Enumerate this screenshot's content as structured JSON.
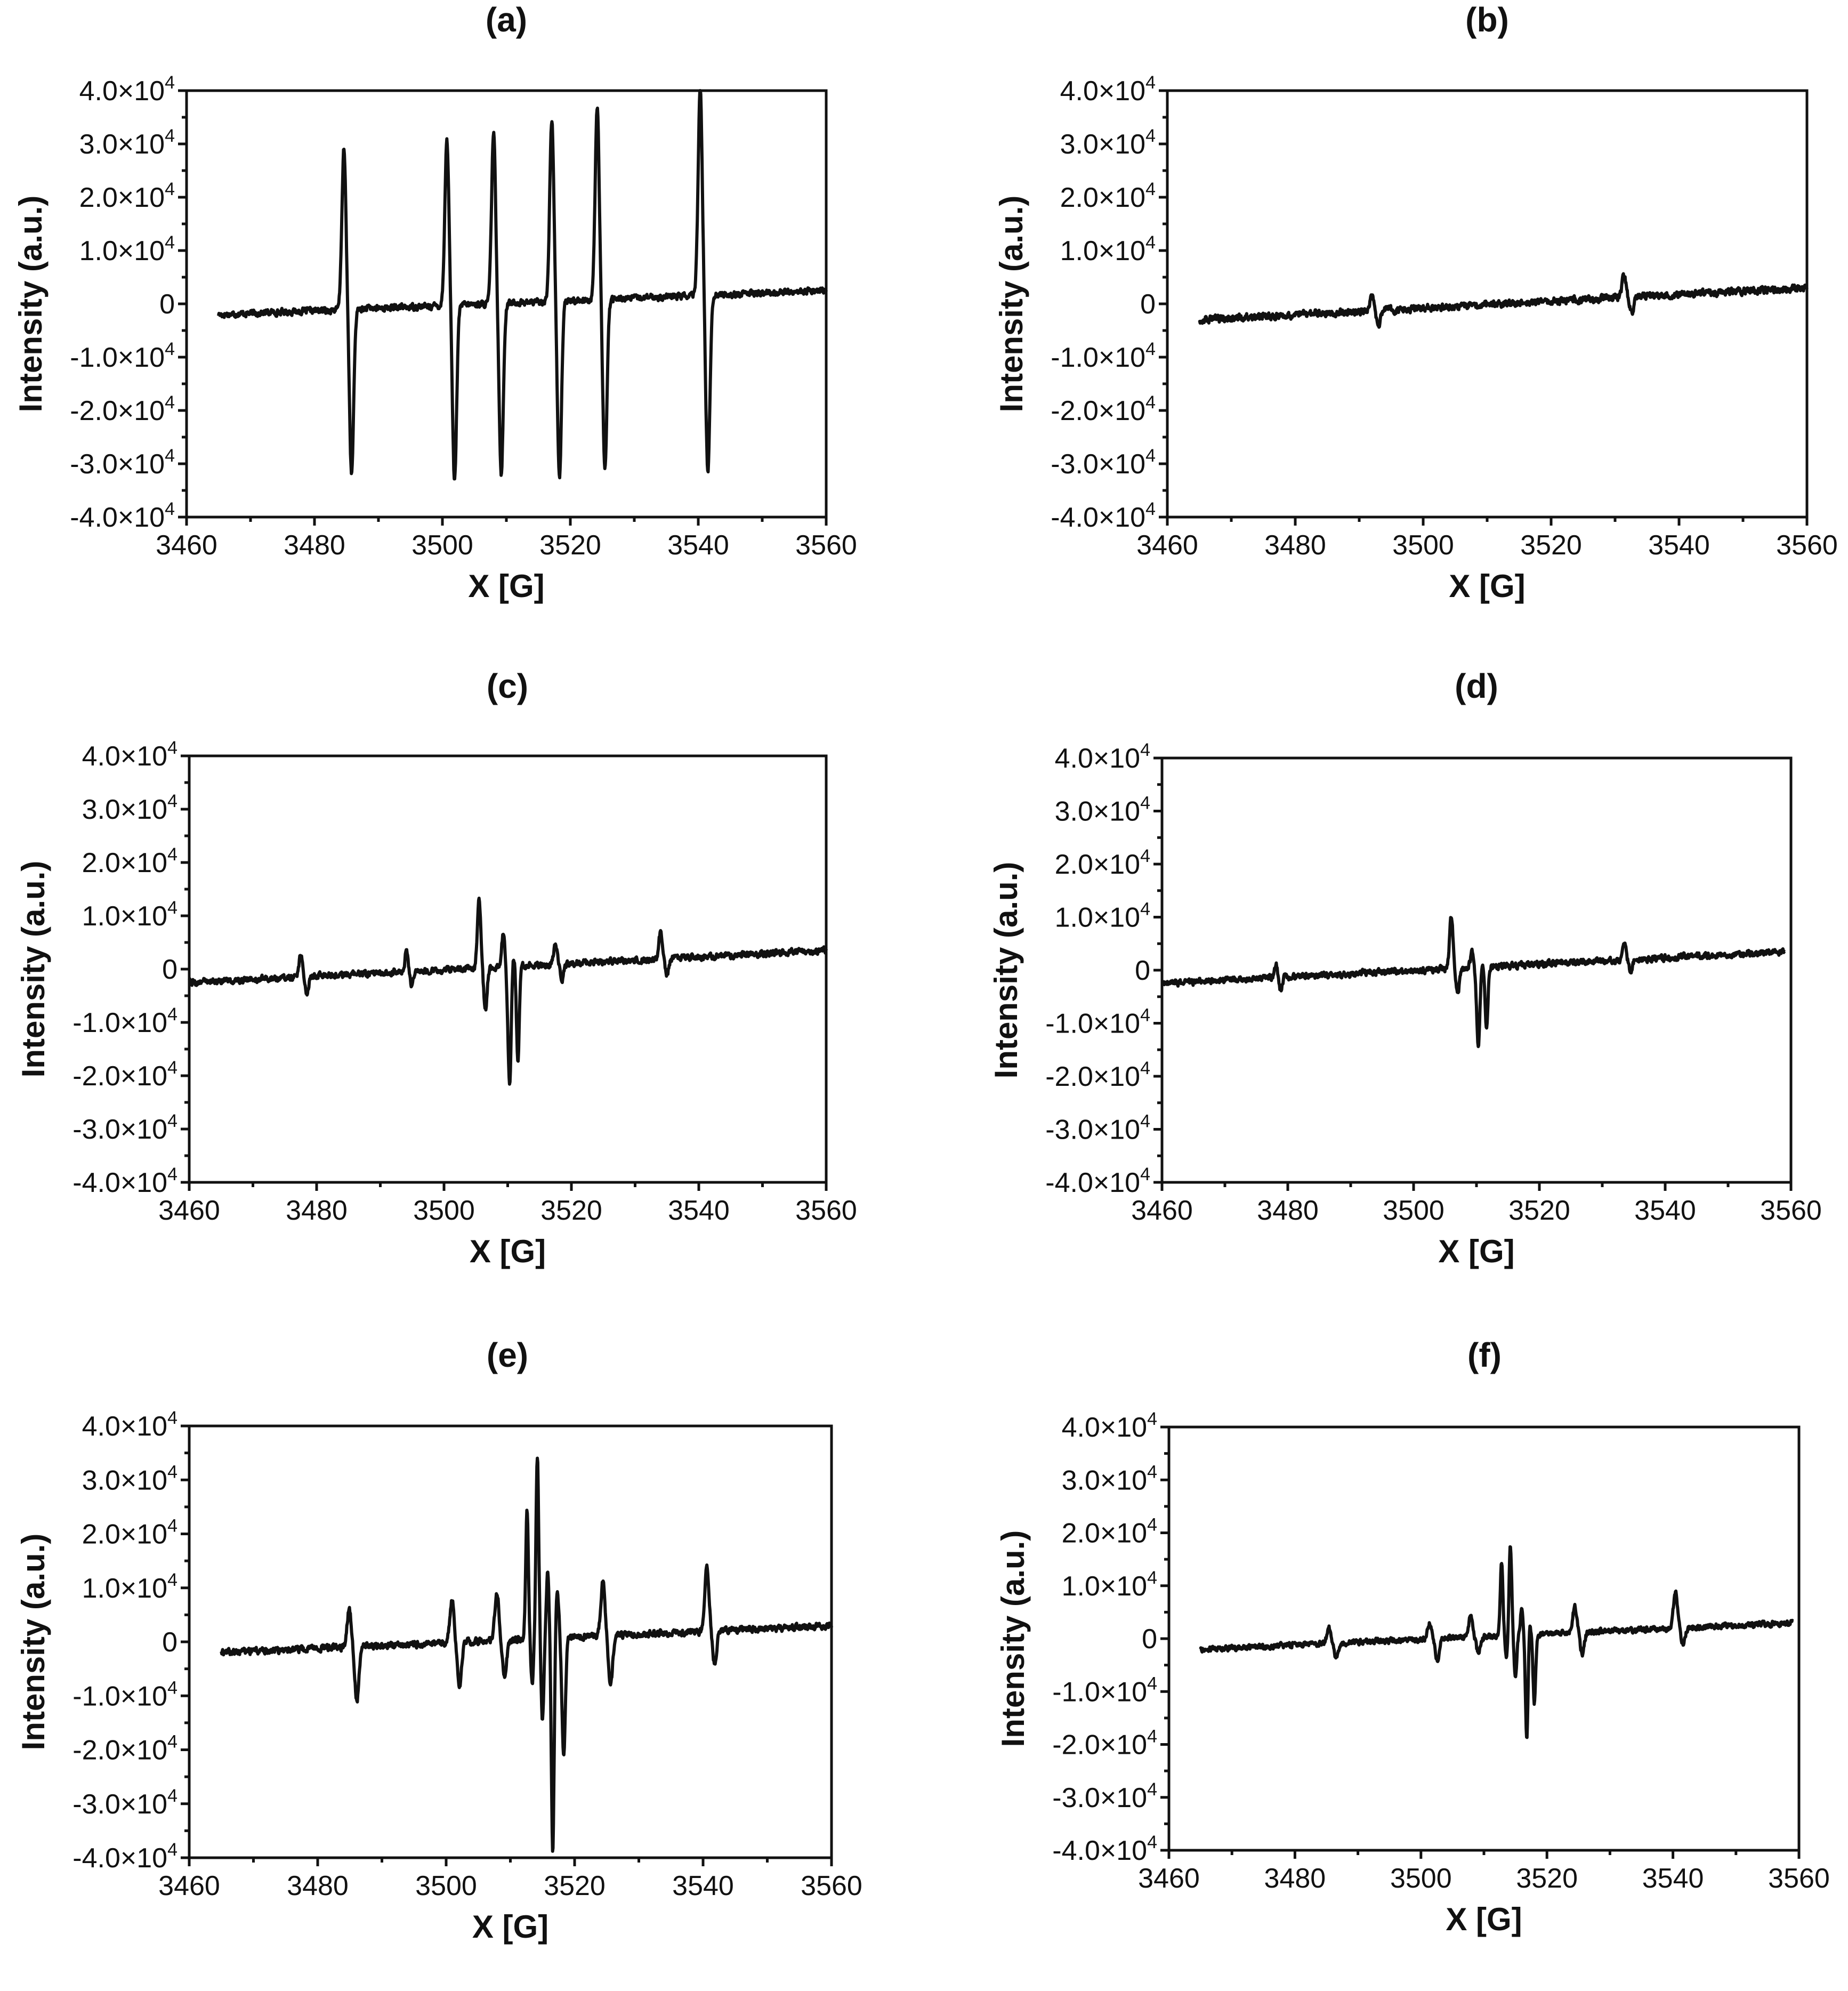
{
  "chart_data": [
    {
      "type": "line",
      "panel": "(a)",
      "xlabel": "X [G]",
      "ylabel": "Intensity (a.u.)",
      "xlim": [
        3460,
        3560
      ],
      "ylim": [
        -40000,
        40000
      ],
      "x_ticks": [
        "3460",
        "3480",
        "3500",
        "3520",
        "3540",
        "3560"
      ],
      "y_ticks": [
        "4.0×10⁴",
        "3.0×10⁴",
        "2.0×10⁴",
        "1.0×10⁴",
        "0",
        "-1.0×10⁴",
        "-2.0×10⁴",
        "-3.0×10⁴",
        "-4.0×10⁴"
      ],
      "x_start": 3465,
      "x_end": 3560,
      "baseline_start": -2000,
      "baseline_end": 2500,
      "noise": 900,
      "peaks": [
        {
          "x": 3485.2,
          "pos": 30000,
          "neg": -31000,
          "w": 0.6
        },
        {
          "x": 3501.3,
          "pos": 31000,
          "neg": -33000,
          "w": 0.6
        },
        {
          "x": 3508.6,
          "pos": 32000,
          "neg": -32000,
          "w": 0.6
        },
        {
          "x": 3517.7,
          "pos": 34000,
          "neg": -33000,
          "w": 0.6
        },
        {
          "x": 3524.8,
          "pos": 36000,
          "neg": -32000,
          "w": 0.6
        },
        {
          "x": 3540.9,
          "pos": 39000,
          "neg": -33000,
          "w": 0.6
        }
      ]
    },
    {
      "type": "line",
      "panel": "(b)",
      "xlabel": "X [G]",
      "ylabel": "Intensity (a.u.)",
      "xlim": [
        3460,
        3560
      ],
      "ylim": [
        -40000,
        40000
      ],
      "x_ticks": [
        "3460",
        "3480",
        "3500",
        "3520",
        "3540",
        "3560"
      ],
      "y_ticks": [
        "4.0×10⁴",
        "3.0×10⁴",
        "2.0×10⁴",
        "1.0×10⁴",
        "0",
        "-1.0×10⁴",
        "-2.0×10⁴",
        "-3.0×10⁴",
        "-4.0×10⁴"
      ],
      "x_start": 3465,
      "x_end": 3560,
      "baseline_start": -3000,
      "baseline_end": 3000,
      "noise": 1000,
      "peaks": [
        {
          "x": 3492.5,
          "pos": 3000,
          "neg": -3000,
          "w": 0.5
        },
        {
          "x": 3532.0,
          "pos": 4000,
          "neg": -3000,
          "w": 0.6
        }
      ]
    },
    {
      "type": "line",
      "panel": "(c)",
      "xlabel": "X [G]",
      "ylabel": "Intensity (a.u.)",
      "xlim": [
        3460,
        3560
      ],
      "ylim": [
        -40000,
        40000
      ],
      "x_ticks": [
        "3460",
        "3480",
        "3500",
        "3520",
        "3540",
        "3560"
      ],
      "y_ticks": [
        "4.0×10⁴",
        "3.0×10⁴",
        "2.0×10⁴",
        "1.0×10⁴",
        "0",
        "-1.0×10⁴",
        "-2.0×10⁴",
        "-3.0×10⁴",
        "-4.0×10⁴"
      ],
      "x_start": 3460,
      "x_end": 3560,
      "baseline_start": -2500,
      "baseline_end": 3500,
      "noise": 900,
      "peaks": [
        {
          "x": 3478.0,
          "pos": 4000,
          "neg": -3000,
          "w": 0.5
        },
        {
          "x": 3494.5,
          "pos": 4000,
          "neg": -3000,
          "w": 0.4
        },
        {
          "x": 3506.0,
          "pos": 13000,
          "neg": -8000,
          "w": 0.5
        },
        {
          "x": 3509.8,
          "pos": 6000,
          "neg": -22000,
          "w": 0.5
        },
        {
          "x": 3511.2,
          "pos": 3000,
          "neg": -18000,
          "w": 0.4
        },
        {
          "x": 3518.0,
          "pos": 4000,
          "neg": -3000,
          "w": 0.5
        },
        {
          "x": 3534.5,
          "pos": 5000,
          "neg": -3000,
          "w": 0.5
        }
      ]
    },
    {
      "type": "line",
      "panel": "(d)",
      "xlabel": "X [G]",
      "ylabel": "Intensity (a.u.)",
      "xlim": [
        3460,
        3560
      ],
      "ylim": [
        -40000,
        40000
      ],
      "x_ticks": [
        "3460",
        "3480",
        "3500",
        "3520",
        "3540",
        "3560"
      ],
      "y_ticks": [
        "4.0×10⁴",
        "3.0×10⁴",
        "2.0×10⁴",
        "1.0×10⁴",
        "0",
        "-1.0×10⁴",
        "-2.0×10⁴",
        "-3.0×10⁴",
        "-4.0×10⁴"
      ],
      "x_start": 3460,
      "x_end": 3559,
      "baseline_start": -2500,
      "baseline_end": 3500,
      "noise": 900,
      "peaks": [
        {
          "x": 3478.5,
          "pos": 2500,
          "neg": -2500,
          "w": 0.4
        },
        {
          "x": 3506.5,
          "pos": 10000,
          "neg": -5000,
          "w": 0.5
        },
        {
          "x": 3509.8,
          "pos": 3000,
          "neg": -15000,
          "w": 0.5
        },
        {
          "x": 3511.2,
          "pos": 2000,
          "neg": -12000,
          "w": 0.4
        },
        {
          "x": 3534.0,
          "pos": 3000,
          "neg": -2500,
          "w": 0.5
        }
      ]
    },
    {
      "type": "line",
      "panel": "(e)",
      "xlabel": "X [G]",
      "ylabel": "Intensity (a.u.)",
      "xlim": [
        3460,
        3560
      ],
      "ylim": [
        -40000,
        40000
      ],
      "x_ticks": [
        "3460",
        "3480",
        "3500",
        "3520",
        "3540",
        "3560"
      ],
      "y_ticks": [
        "4.0×10⁴",
        "3.0×10⁴",
        "2.0×10⁴",
        "1.0×10⁴",
        "0",
        "-1.0×10⁴",
        "-2.0×10⁴",
        "-3.0×10⁴",
        "-4.0×10⁴"
      ],
      "x_start": 3465,
      "x_end": 3560,
      "baseline_start": -2000,
      "baseline_end": 3000,
      "noise": 900,
      "peaks": [
        {
          "x": 3485.5,
          "pos": 7000,
          "neg": -10000,
          "w": 0.6
        },
        {
          "x": 3501.5,
          "pos": 8000,
          "neg": -8000,
          "w": 0.6
        },
        {
          "x": 3508.5,
          "pos": 9000,
          "neg": -7000,
          "w": 0.6
        },
        {
          "x": 3513.0,
          "pos": 24000,
          "neg": -8000,
          "w": 0.4
        },
        {
          "x": 3514.6,
          "pos": 34000,
          "neg": -15000,
          "w": 0.4
        },
        {
          "x": 3516.2,
          "pos": 12000,
          "neg": -40000,
          "w": 0.4
        },
        {
          "x": 3517.8,
          "pos": 8000,
          "neg": -22000,
          "w": 0.5
        },
        {
          "x": 3525.0,
          "pos": 10000,
          "neg": -9000,
          "w": 0.6
        },
        {
          "x": 3541.2,
          "pos": 12000,
          "neg": -6000,
          "w": 0.6
        }
      ]
    },
    {
      "type": "line",
      "panel": "(f)",
      "xlabel": "X [G]",
      "ylabel": "Intensity (a.u.)",
      "xlim": [
        3460,
        3560
      ],
      "ylim": [
        -40000,
        40000
      ],
      "x_ticks": [
        "3460",
        "3480",
        "3500",
        "3520",
        "3540",
        "3560"
      ],
      "y_ticks": [
        "4.0×10⁴",
        "3.0×10⁴",
        "2.0×10⁴",
        "1.0×10⁴",
        "0",
        "-1.0×10⁴",
        "-2.0×10⁴",
        "-3.0×10⁴",
        "-4.0×10⁴"
      ],
      "x_start": 3465,
      "x_end": 3559,
      "baseline_start": -2000,
      "baseline_end": 3000,
      "noise": 800,
      "peaks": [
        {
          "x": 3486.0,
          "pos": 3000,
          "neg": -3000,
          "w": 0.6
        },
        {
          "x": 3502.0,
          "pos": 3000,
          "neg": -4000,
          "w": 0.6
        },
        {
          "x": 3508.5,
          "pos": 4000,
          "neg": -3000,
          "w": 0.6
        },
        {
          "x": 3513.2,
          "pos": 14000,
          "neg": -4000,
          "w": 0.4
        },
        {
          "x": 3514.6,
          "pos": 17000,
          "neg": -8000,
          "w": 0.4
        },
        {
          "x": 3516.4,
          "pos": 5000,
          "neg": -20000,
          "w": 0.4
        },
        {
          "x": 3517.6,
          "pos": 3000,
          "neg": -13000,
          "w": 0.4
        },
        {
          "x": 3525.0,
          "pos": 5000,
          "neg": -4000,
          "w": 0.6
        },
        {
          "x": 3541.0,
          "pos": 7000,
          "neg": -3000,
          "w": 0.6
        }
      ]
    }
  ]
}
